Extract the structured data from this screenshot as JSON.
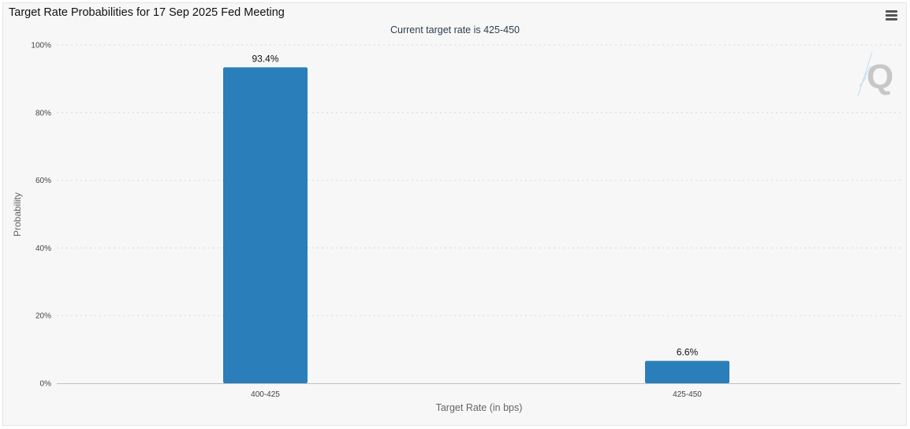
{
  "chart_data": {
    "type": "bar",
    "title": "Target Rate Probabilities for 17 Sep 2025 Fed Meeting",
    "subtitle": "Current target rate is 425-450",
    "xlabel": "Target Rate (in bps)",
    "ylabel": "Probability",
    "categories": [
      "400-425",
      "425-450"
    ],
    "values": [
      93.4,
      6.6
    ],
    "data_labels": [
      "93.4%",
      "6.6%"
    ],
    "yticks": [
      "0%",
      "20%",
      "40%",
      "60%",
      "80%",
      "100%"
    ],
    "ylim": [
      0,
      100
    ],
    "grid": true,
    "bar_color": "#2a7fba"
  },
  "toolbar": {
    "menu_icon": "hamburger-menu-icon"
  },
  "logo": {
    "icon": "q-logo-icon"
  }
}
